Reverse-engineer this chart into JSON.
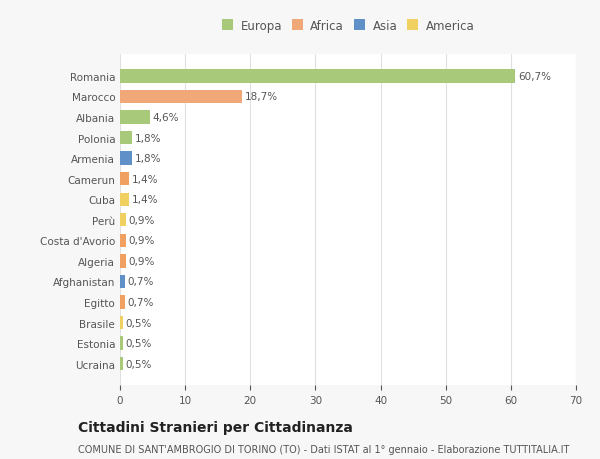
{
  "countries": [
    "Romania",
    "Marocco",
    "Albania",
    "Polonia",
    "Armenia",
    "Camerun",
    "Cuba",
    "Perù",
    "Costa d'Avorio",
    "Algeria",
    "Afghanistan",
    "Egitto",
    "Brasile",
    "Estonia",
    "Ucraina"
  ],
  "values": [
    60.7,
    18.7,
    4.6,
    1.8,
    1.8,
    1.4,
    1.4,
    0.9,
    0.9,
    0.9,
    0.7,
    0.7,
    0.5,
    0.5,
    0.5
  ],
  "labels": [
    "60,7%",
    "18,7%",
    "4,6%",
    "1,8%",
    "1,8%",
    "1,4%",
    "1,4%",
    "0,9%",
    "0,9%",
    "0,9%",
    "0,7%",
    "0,7%",
    "0,5%",
    "0,5%",
    "0,5%"
  ],
  "colors": [
    "#a8c87a",
    "#f0a878",
    "#a8c87a",
    "#a8c87a",
    "#6090c8",
    "#f0a060",
    "#f0d060",
    "#f0d060",
    "#f0a060",
    "#f0a060",
    "#6090c8",
    "#f0a060",
    "#f0d060",
    "#a8c87a",
    "#a8c87a"
  ],
  "legend_labels": [
    "Europa",
    "Africa",
    "Asia",
    "America"
  ],
  "legend_colors": [
    "#a8c87a",
    "#f0a878",
    "#6090c8",
    "#f0d060"
  ],
  "title": "Cittadini Stranieri per Cittadinanza",
  "subtitle": "COMUNE DI SANT'AMBROGIO DI TORINO (TO) - Dati ISTAT al 1° gennaio - Elaborazione TUTTITALIA.IT",
  "xlim": [
    0,
    70
  ],
  "xticks": [
    0,
    10,
    20,
    30,
    40,
    50,
    60,
    70
  ],
  "bg_color": "#f7f7f7",
  "bar_bg_color": "#ffffff",
  "grid_color": "#e0e0e0",
  "text_color": "#555555",
  "title_fontsize": 10,
  "subtitle_fontsize": 7,
  "label_fontsize": 7.5,
  "tick_fontsize": 7.5,
  "legend_fontsize": 8.5
}
